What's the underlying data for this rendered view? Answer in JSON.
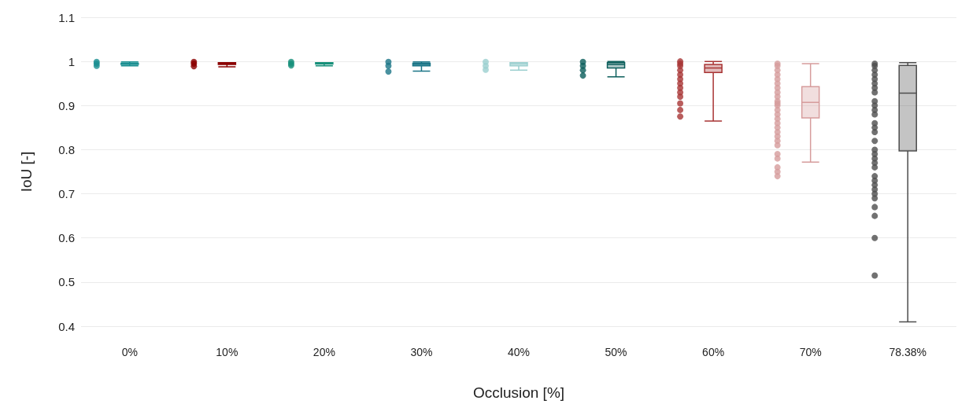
{
  "chart_data": {
    "type": "box",
    "xlabel": "Occlusion [%]",
    "ylabel": "IoU [-]",
    "categories": [
      "0%",
      "10%",
      "20%",
      "30%",
      "40%",
      "50%",
      "60%",
      "70%",
      "78.38%"
    ],
    "colors": [
      "#1a8f91",
      "#8b0000",
      "#17907a",
      "#1b7587",
      "#9bcfcf",
      "#0b5e5b",
      "#a83434",
      "#d69c9c",
      "#4d4d4d"
    ],
    "boxes": [
      {
        "low": 0.99,
        "q1": 0.993,
        "median": 0.995,
        "q3": 0.996,
        "high": 0.999
      },
      {
        "low": 0.988,
        "q1": 0.993,
        "median": 0.995,
        "q3": 0.997,
        "high": 0.997
      },
      {
        "low": 0.99,
        "q1": 0.994,
        "median": 0.996,
        "q3": 0.997,
        "high": 0.997
      },
      {
        "low": 0.978,
        "q1": 0.99,
        "median": 0.993,
        "q3": 0.996,
        "high": 0.999
      },
      {
        "low": 0.98,
        "q1": 0.99,
        "median": 0.994,
        "q3": 0.997,
        "high": 0.997
      },
      {
        "low": 0.965,
        "q1": 0.985,
        "median": 0.993,
        "q3": 0.997,
        "high": 1.0
      },
      {
        "low": 0.865,
        "q1": 0.975,
        "median": 0.985,
        "q3": 0.993,
        "high": 1.0
      },
      {
        "low": 0.772,
        "q1": 0.872,
        "median": 0.907,
        "q3": 0.943,
        "high": 0.995
      },
      {
        "low": 0.41,
        "q1": 0.797,
        "median": 0.928,
        "q3": 0.991,
        "high": 0.997
      }
    ],
    "series": [
      {
        "type": "scatter",
        "x": [
          "0%",
          "0%",
          "0%",
          "10%",
          "10%",
          "10%",
          "20%",
          "20%",
          "20%",
          "30%",
          "30%",
          "30%",
          "40%",
          "40%",
          "40%",
          "50%",
          "50%",
          "50%",
          "50%",
          "60%",
          "60%",
          "60%",
          "60%",
          "60%",
          "60%",
          "60%",
          "60%",
          "60%",
          "60%",
          "60%",
          "60%",
          "60%",
          "70%",
          "70%",
          "70%",
          "70%",
          "70%",
          "70%",
          "70%",
          "70%",
          "70%",
          "70%",
          "70%",
          "70%",
          "70%",
          "70%",
          "70%",
          "70%",
          "70%",
          "70%",
          "70%",
          "70%",
          "70%",
          "70%",
          "70%",
          "70%",
          "70%",
          "70%",
          "78.38%",
          "78.38%",
          "78.38%",
          "78.38%",
          "78.38%",
          "78.38%",
          "78.38%",
          "78.38%",
          "78.38%",
          "78.38%",
          "78.38%",
          "78.38%",
          "78.38%",
          "78.38%",
          "78.38%",
          "78.38%",
          "78.38%",
          "78.38%",
          "78.38%",
          "78.38%",
          "78.38%",
          "78.38%",
          "78.38%",
          "78.38%",
          "78.38%",
          "78.38%",
          "78.38%",
          "78.38%",
          "78.38%",
          "78.38%",
          "78.38%"
        ],
        "colors": [
          "#1a8f91",
          "#1a8f91",
          "#1a8f91",
          "#8b0000",
          "#8b0000",
          "#8b0000",
          "#17907a",
          "#17907a",
          "#17907a",
          "#1b7587",
          "#1b7587",
          "#1b7587",
          "#9bcfcf",
          "#9bcfcf",
          "#9bcfcf",
          "#0b5e5b",
          "#0b5e5b",
          "#0b5e5b",
          "#0b5e5b",
          "#a83434",
          "#a83434",
          "#a83434",
          "#a83434",
          "#a83434",
          "#a83434",
          "#a83434",
          "#a83434",
          "#a83434",
          "#a83434",
          "#a83434",
          "#a83434",
          "#a83434",
          "#d69c9c",
          "#d69c9c",
          "#d69c9c",
          "#d69c9c",
          "#d69c9c",
          "#d69c9c",
          "#d69c9c",
          "#d69c9c",
          "#d69c9c",
          "#d69c9c",
          "#d69c9c",
          "#d69c9c",
          "#d69c9c",
          "#d69c9c",
          "#d69c9c",
          "#d69c9c",
          "#d69c9c",
          "#d69c9c",
          "#d69c9c",
          "#d69c9c",
          "#d69c9c",
          "#d69c9c",
          "#d69c9c",
          "#d69c9c",
          "#d69c9c",
          "#d69c9c",
          "#4d4d4d",
          "#4d4d4d",
          "#4d4d4d",
          "#4d4d4d",
          "#4d4d4d",
          "#4d4d4d",
          "#4d4d4d",
          "#4d4d4d",
          "#4d4d4d",
          "#4d4d4d",
          "#4d4d4d",
          "#4d4d4d",
          "#4d4d4d",
          "#4d4d4d",
          "#4d4d4d",
          "#4d4d4d",
          "#4d4d4d",
          "#4d4d4d",
          "#4d4d4d",
          "#4d4d4d",
          "#4d4d4d",
          "#4d4d4d",
          "#4d4d4d",
          "#4d4d4d",
          "#4d4d4d",
          "#4d4d4d",
          "#4d4d4d",
          "#4d4d4d",
          "#4d4d4d",
          "#4d4d4d",
          "#4d4d4d"
        ],
        "values": [
          0.999,
          0.995,
          0.99,
          0.999,
          0.995,
          0.989,
          0.999,
          0.995,
          0.991,
          0.999,
          0.99,
          0.977,
          0.999,
          0.99,
          0.981,
          0.999,
          0.99,
          0.98,
          0.968,
          1.0,
          0.995,
          0.99,
          0.98,
          0.97,
          0.96,
          0.95,
          0.94,
          0.93,
          0.92,
          0.905,
          0.89,
          0.875,
          0.995,
          0.99,
          0.98,
          0.97,
          0.96,
          0.95,
          0.94,
          0.93,
          0.92,
          0.91,
          0.905,
          0.9,
          0.89,
          0.88,
          0.87,
          0.86,
          0.85,
          0.84,
          0.83,
          0.82,
          0.81,
          0.79,
          0.78,
          0.76,
          0.75,
          0.74,
          0.995,
          0.99,
          0.98,
          0.97,
          0.96,
          0.95,
          0.94,
          0.93,
          0.91,
          0.9,
          0.89,
          0.88,
          0.86,
          0.85,
          0.84,
          0.82,
          0.8,
          0.79,
          0.78,
          0.77,
          0.76,
          0.74,
          0.73,
          0.72,
          0.71,
          0.7,
          0.69,
          0.67,
          0.65,
          0.6,
          0.515
        ]
      }
    ],
    "ylim": [
      0.4,
      1.1
    ],
    "yticks": [
      0.4,
      0.5,
      0.6,
      0.7,
      0.8,
      0.9,
      1,
      1.1
    ],
    "grid": "y"
  }
}
